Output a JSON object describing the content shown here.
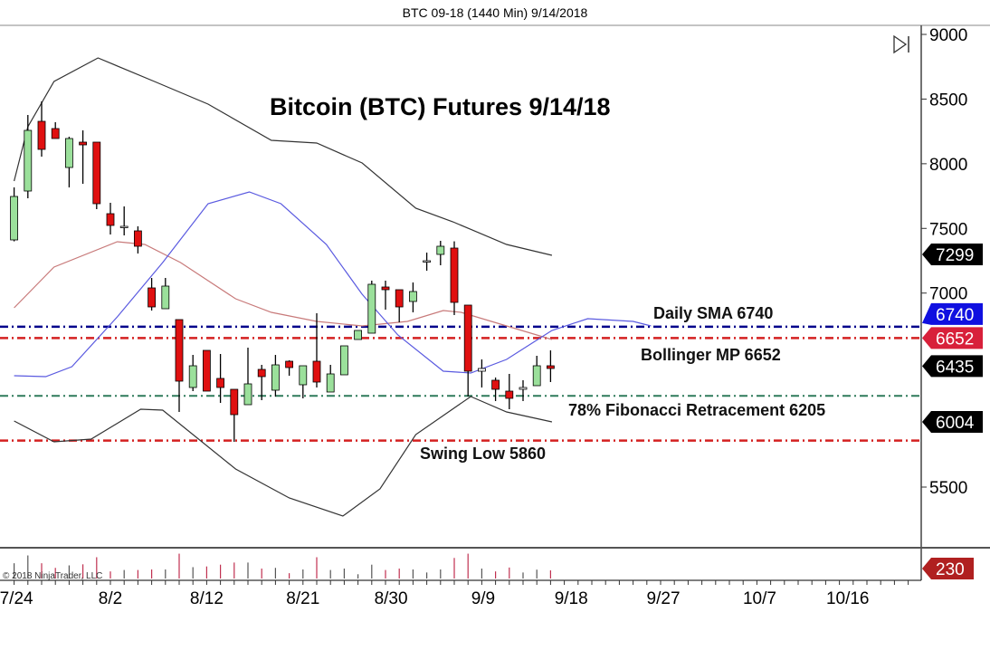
{
  "window_title": "BTC 09-18 (1440 Min)  9/14/2018",
  "copyright": "© 2018 NinjaTrader, LLC",
  "icons": {
    "scroll_end": "skip-to-end-icon"
  },
  "colors": {
    "up": "#9be09b",
    "down": "#e01010",
    "upper_band": "#333333",
    "middle_band": "#c87a7a",
    "lower_band": "#333333",
    "blue_line": "#5a5ae0",
    "sma_line": "#00008b",
    "bollinger_line": "#d42020",
    "fib_line": "#2e7a5a",
    "swing_line": "#d42020"
  },
  "chart_data": {
    "type": "candlestick",
    "title": "Bitcoin (BTC) Futures 9/14/18",
    "ylim": [
      5100,
      9070
    ],
    "yticks": [
      "9000",
      "8500",
      "8000",
      "7500",
      "7000",
      "5500"
    ],
    "xticks": [
      {
        "label": "7/24",
        "at": 0
      },
      {
        "label": "8/2",
        "at": 7
      },
      {
        "label": "8/12",
        "at": 14
      },
      {
        "label": "8/21",
        "at": 21
      },
      {
        "label": "8/30",
        "at": 27.4
      },
      {
        "label": "9/9",
        "at": 34.1
      },
      {
        "label": "9/18",
        "at": 40.5
      },
      {
        "label": "9/27",
        "at": 47.2
      },
      {
        "label": "10/7",
        "at": 54.2
      },
      {
        "label": "10/16",
        "at": 60.6
      }
    ],
    "candles": [
      [
        7411,
        7817,
        7400,
        7747
      ],
      [
        7789,
        8377,
        7733,
        8258
      ],
      [
        8328,
        8482,
        8055,
        8111
      ],
      [
        8272,
        8321,
        8195,
        8195
      ],
      [
        7971,
        8209,
        7817,
        8195
      ],
      [
        8167,
        8258,
        7845,
        8146
      ],
      [
        8167,
        8167,
        7649,
        7691
      ],
      [
        7614,
        7698,
        7453,
        7523
      ],
      [
        7516,
        7670,
        7446,
        7516
      ],
      [
        7481,
        7516,
        7306,
        7362
      ],
      [
        7040,
        7117,
        6865,
        6893
      ],
      [
        6879,
        7117,
        6879,
        7054
      ],
      [
        6795,
        6795,
        6081,
        6319
      ],
      [
        6270,
        6522,
        6242,
        6438
      ],
      [
        6557,
        6557,
        6242,
        6242
      ],
      [
        6340,
        6529,
        6151,
        6270
      ],
      [
        6256,
        6256,
        5850,
        6060
      ],
      [
        6137,
        6578,
        6137,
        6298
      ],
      [
        6410,
        6445,
        6172,
        6354
      ],
      [
        6249,
        6522,
        6200,
        6445
      ],
      [
        6473,
        6480,
        6361,
        6424
      ],
      [
        6291,
        6438,
        6186,
        6438
      ],
      [
        6473,
        6844,
        6270,
        6312
      ],
      [
        6235,
        6445,
        6235,
        6375
      ],
      [
        6368,
        6592,
        6368,
        6592
      ],
      [
        6641,
        6711,
        6641,
        6711
      ],
      [
        6690,
        7096,
        6690,
        7068
      ],
      [
        7047,
        7096,
        6872,
        7026
      ],
      [
        7026,
        7026,
        6774,
        6893
      ],
      [
        6935,
        7082,
        6851,
        7012
      ],
      [
        7250,
        7313,
        7173,
        7250
      ],
      [
        7299,
        7404,
        7215,
        7362
      ],
      [
        7348,
        7400,
        6830,
        6928
      ],
      [
        6907,
        6907,
        6200,
        6396
      ],
      [
        6396,
        6487,
        6270,
        6417
      ],
      [
        6326,
        6347,
        6165,
        6256
      ],
      [
        6242,
        6375,
        6102,
        6186
      ],
      [
        6256,
        6326,
        6165,
        6270
      ],
      [
        6284,
        6515,
        6284,
        6438
      ],
      [
        6438,
        6557,
        6312,
        6417
      ]
    ],
    "volume": [
      430,
      650,
      430,
      300,
      370,
      400,
      600,
      200,
      240,
      240,
      255,
      255,
      700,
      320,
      340,
      390,
      450,
      450,
      280,
      300,
      150,
      255,
      600,
      240,
      280,
      120,
      390,
      240,
      280,
      255,
      170,
      255,
      580,
      700,
      280,
      200,
      310,
      170,
      250,
      230
    ],
    "upper_band": [
      [
        0,
        7866
      ],
      [
        1,
        8286
      ],
      [
        2.9,
        8636
      ],
      [
        6.1,
        8818
      ],
      [
        10.2,
        8636
      ],
      [
        14.1,
        8461
      ],
      [
        18.7,
        8181
      ],
      [
        22,
        8160
      ],
      [
        25.3,
        8006
      ],
      [
        29.2,
        7656
      ],
      [
        31.9,
        7551
      ],
      [
        35.8,
        7376
      ],
      [
        39.1,
        7292
      ]
    ],
    "middle_band": [
      [
        0,
        6886
      ],
      [
        2.9,
        7201
      ],
      [
        7.5,
        7397
      ],
      [
        9.5,
        7376
      ],
      [
        12.1,
        7236
      ],
      [
        16.1,
        6956
      ],
      [
        18.7,
        6851
      ],
      [
        22,
        6781
      ],
      [
        25.3,
        6746
      ],
      [
        28.6,
        6781
      ],
      [
        31.2,
        6865
      ],
      [
        32.5,
        6851
      ],
      [
        35.8,
        6746
      ],
      [
        39.1,
        6641
      ]
    ],
    "lower_band": [
      [
        0,
        6011
      ],
      [
        2.9,
        5850
      ],
      [
        5.6,
        5871
      ],
      [
        9.2,
        6102
      ],
      [
        10.8,
        6095
      ],
      [
        16.1,
        5640
      ],
      [
        20,
        5416
      ],
      [
        23.9,
        5276
      ],
      [
        26.6,
        5486
      ],
      [
        29.2,
        5906
      ],
      [
        33.2,
        6200
      ],
      [
        35.8,
        6081
      ],
      [
        39.1,
        6004
      ]
    ],
    "blue_line": [
      [
        0,
        6361
      ],
      [
        2.3,
        6354
      ],
      [
        4.2,
        6431
      ],
      [
        7.5,
        6816
      ],
      [
        10.8,
        7236
      ],
      [
        14.1,
        7691
      ],
      [
        17.1,
        7782
      ],
      [
        19.4,
        7691
      ],
      [
        22.7,
        7376
      ],
      [
        25.3,
        6991
      ],
      [
        27.9,
        6676
      ],
      [
        31.2,
        6396
      ],
      [
        33.2,
        6382
      ],
      [
        35.8,
        6487
      ],
      [
        39.1,
        6711
      ],
      [
        41.7,
        6802
      ],
      [
        45,
        6781
      ],
      [
        46.3,
        6746
      ]
    ],
    "levels": [
      {
        "label": "Daily SMA 6740",
        "value": 6740,
        "color": "#00008b"
      },
      {
        "label": "Bollinger MP 6652",
        "value": 6652,
        "color": "#d42020"
      },
      {
        "label": "78% Fibonacci Retracement 6205",
        "value": 6205,
        "color": "#2e7a5a"
      },
      {
        "label": "Swing Low 5860",
        "value": 5860,
        "color": "#d42020"
      }
    ],
    "markers": [
      {
        "label": "7299",
        "value": 7299,
        "color": "#000000"
      },
      {
        "label": "6740",
        "value": 6740,
        "color": "#1010e0"
      },
      {
        "label": "6652",
        "value": 6652,
        "color": "#d8203a"
      },
      {
        "label": "6435",
        "value": 6435,
        "color": "#000000"
      },
      {
        "label": "6004",
        "value": 6004,
        "color": "#000000"
      }
    ],
    "volume_marker": {
      "label": "230",
      "color": "#b02020"
    }
  }
}
